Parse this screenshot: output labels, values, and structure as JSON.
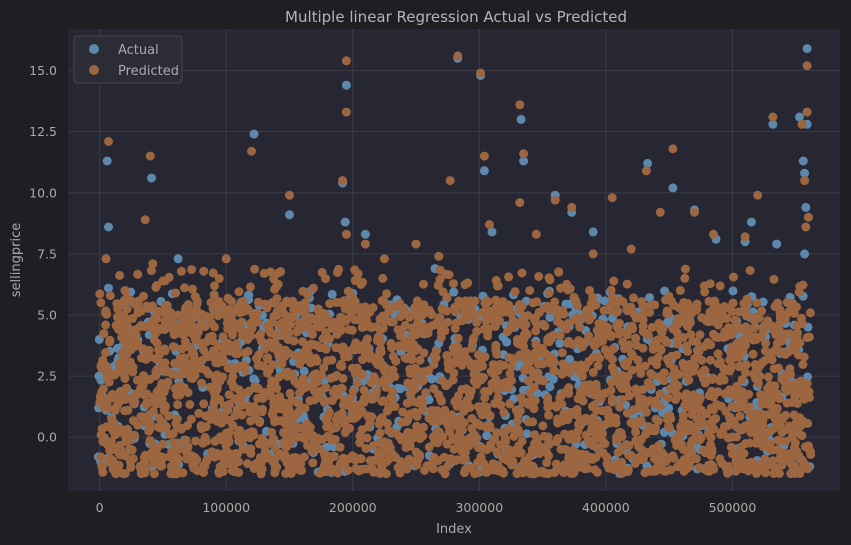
{
  "colors": {
    "figure_bg": "#1e1f22",
    "axes_bg": "#262732",
    "grid": "#3a3b44",
    "text": "#a9a9a9",
    "title": "#b5b5b5",
    "actual": "#5e88ab",
    "predicted": "#9c6641"
  },
  "chart_data": {
    "type": "scatter",
    "title": "Multiple linear Regression Actual vs Predicted",
    "xlabel": "Index",
    "ylabel": "sellingprice",
    "xlim": [
      -25000,
      585000
    ],
    "ylim": [
      -2.2,
      16.7
    ],
    "xticks": [
      0,
      100000,
      200000,
      300000,
      400000,
      500000
    ],
    "xtick_labels": [
      "0",
      "100000",
      "200000",
      "300000",
      "400000",
      "500000"
    ],
    "yticks": [
      0.0,
      2.5,
      5.0,
      7.5,
      10.0,
      12.5,
      15.0
    ],
    "ytick_labels": [
      "0.0",
      "2.5",
      "5.0",
      "7.5",
      "10.0",
      "12.5",
      "15.0"
    ],
    "grid": true,
    "legend": {
      "position": "top-left",
      "entries": [
        "Actual",
        "Predicted"
      ]
    },
    "series": [
      {
        "name": "Actual",
        "color": "#5e88ab",
        "points": [
          [
            6000,
            11.3
          ],
          [
            7000,
            8.6
          ],
          [
            7000,
            6.1
          ],
          [
            41000,
            10.6
          ],
          [
            20000,
            6.0
          ],
          [
            62000,
            7.3
          ],
          [
            122000,
            12.4
          ],
          [
            150000,
            9.1
          ],
          [
            192000,
            10.4
          ],
          [
            195000,
            14.4
          ],
          [
            194000,
            8.8
          ],
          [
            210000,
            8.3
          ],
          [
            283000,
            15.5
          ],
          [
            301000,
            14.8
          ],
          [
            304000,
            10.9
          ],
          [
            310000,
            8.4
          ],
          [
            333000,
            13.0
          ],
          [
            335000,
            11.3
          ],
          [
            360000,
            9.9
          ],
          [
            373000,
            9.2
          ],
          [
            390000,
            8.4
          ],
          [
            433000,
            11.2
          ],
          [
            453000,
            10.2
          ],
          [
            470000,
            9.3
          ],
          [
            487000,
            8.1
          ],
          [
            510000,
            8.0
          ],
          [
            515000,
            8.8
          ],
          [
            532000,
            12.8
          ],
          [
            535000,
            7.9
          ],
          [
            553000,
            13.1
          ],
          [
            556000,
            11.3
          ],
          [
            557000,
            10.8
          ],
          [
            558000,
            9.4
          ],
          [
            559000,
            15.9
          ],
          [
            559000,
            12.8
          ],
          [
            557000,
            7.5
          ],
          [
            -1000,
            -0.8
          ],
          [
            -800,
            1.2
          ],
          [
            -500,
            2.5
          ],
          [
            -300,
            4.0
          ],
          [
            800,
            -1.0
          ],
          [
            561000,
            -1.2
          ],
          [
            240000,
            5.3
          ],
          [
            390000,
            5.6
          ],
          [
            265000,
            6.9
          ],
          [
            167000,
            6.0
          ]
        ]
      },
      {
        "name": "Predicted",
        "color": "#9c6641",
        "points": [
          [
            7000,
            12.1
          ],
          [
            5000,
            7.3
          ],
          [
            1000,
            5.5
          ],
          [
            36000,
            8.9
          ],
          [
            40000,
            11.5
          ],
          [
            42000,
            7.1
          ],
          [
            100000,
            7.3
          ],
          [
            120000,
            11.7
          ],
          [
            150000,
            9.9
          ],
          [
            192000,
            10.5
          ],
          [
            195000,
            15.4
          ],
          [
            195000,
            13.3
          ],
          [
            195000,
            8.3
          ],
          [
            210000,
            7.9
          ],
          [
            250000,
            7.9
          ],
          [
            277000,
            10.5
          ],
          [
            283000,
            15.6
          ],
          [
            301000,
            14.9
          ],
          [
            304000,
            11.5
          ],
          [
            308000,
            8.7
          ],
          [
            332000,
            13.6
          ],
          [
            335000,
            11.6
          ],
          [
            332000,
            9.6
          ],
          [
            345000,
            8.3
          ],
          [
            360000,
            9.7
          ],
          [
            373000,
            9.4
          ],
          [
            390000,
            7.5
          ],
          [
            405000,
            9.8
          ],
          [
            432000,
            10.9
          ],
          [
            443000,
            9.2
          ],
          [
            453000,
            11.8
          ],
          [
            470000,
            9.2
          ],
          [
            485000,
            8.3
          ],
          [
            510000,
            8.2
          ],
          [
            520000,
            9.9
          ],
          [
            532000,
            13.1
          ],
          [
            555000,
            12.8
          ],
          [
            557000,
            10.5
          ],
          [
            559000,
            15.2
          ],
          [
            559000,
            13.3
          ],
          [
            560000,
            9.0
          ],
          [
            558000,
            8.6
          ],
          [
            20000,
            6.0
          ],
          [
            60000,
            5.9
          ],
          [
            130000,
            6.7
          ],
          [
            225000,
            7.3
          ],
          [
            268000,
            7.4
          ],
          [
            420000,
            7.7
          ]
        ]
      }
    ],
    "dense_band": {
      "x_range": [
        0,
        562000
      ],
      "y_range": [
        -1.5,
        5.6
      ]
    }
  }
}
